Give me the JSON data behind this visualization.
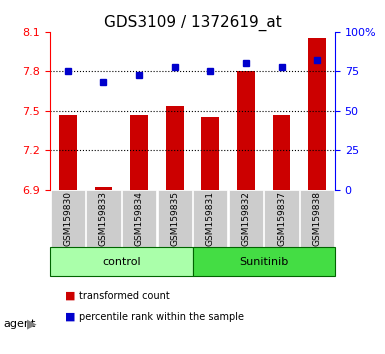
{
  "title": "GDS3109 / 1372619_at",
  "samples": [
    "GSM159830",
    "GSM159833",
    "GSM159834",
    "GSM159835",
    "GSM159831",
    "GSM159832",
    "GSM159837",
    "GSM159838"
  ],
  "bar_values": [
    7.47,
    6.92,
    7.47,
    7.54,
    7.45,
    7.8,
    7.47,
    8.05
  ],
  "dot_values": [
    75,
    68,
    73,
    78,
    75,
    80,
    78,
    82
  ],
  "ylim_left": [
    6.9,
    8.1
  ],
  "ylim_right": [
    0,
    100
  ],
  "yticks_left": [
    6.9,
    7.2,
    7.5,
    7.8,
    8.1
  ],
  "yticks_right": [
    0,
    25,
    50,
    75,
    100
  ],
  "ytick_labels_left": [
    "6.9",
    "7.2",
    "7.5",
    "7.8",
    "8.1"
  ],
  "ytick_labels_right": [
    "0",
    "25",
    "50",
    "75",
    "100%"
  ],
  "hlines": [
    7.2,
    7.5,
    7.8
  ],
  "bar_color": "#cc0000",
  "dot_color": "#0000cc",
  "bar_base": 6.9,
  "groups": [
    {
      "label": "control",
      "start": 0,
      "end": 4,
      "color": "#aaffaa"
    },
    {
      "label": "Sunitinib",
      "start": 4,
      "end": 8,
      "color": "#44dd44"
    }
  ],
  "group_row_label": "agent",
  "legend_items": [
    {
      "color": "#cc0000",
      "label": "transformed count"
    },
    {
      "color": "#0000cc",
      "label": "percentile rank within the sample"
    }
  ],
  "sample_bg_color": "#cccccc",
  "xlabel_color": "red",
  "ylabel_right_color": "blue"
}
